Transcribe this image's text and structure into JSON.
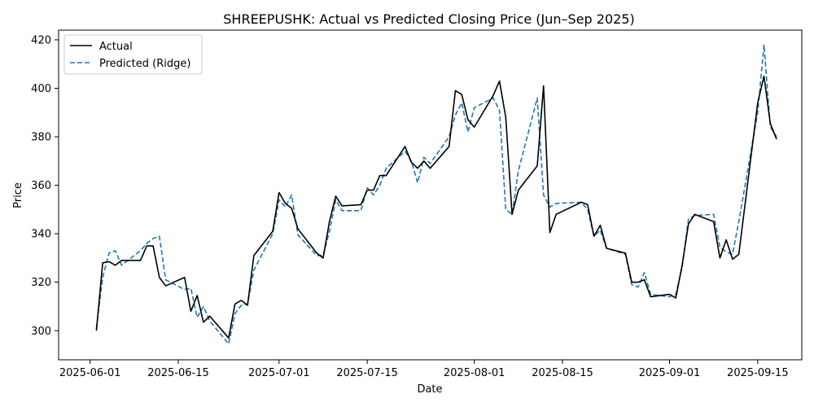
{
  "chart_data": {
    "type": "line",
    "title": "SHREEPUSHK: Actual vs Predicted Closing Price (Jun–Sep 2025)",
    "xlabel": "Date",
    "ylabel": "Price",
    "xlim": [
      "2025-05-27",
      "2025-09-22"
    ],
    "ylim": [
      288,
      424
    ],
    "x_ticks": [
      "2025-06-01",
      "2025-06-15",
      "2025-07-01",
      "2025-07-15",
      "2025-08-01",
      "2025-08-15",
      "2025-09-01",
      "2025-09-15"
    ],
    "y_ticks": [
      300,
      320,
      340,
      360,
      380,
      400,
      420
    ],
    "grid": false,
    "legend": "upper-left",
    "x": [
      "2025-06-02",
      "2025-06-03",
      "2025-06-04",
      "2025-06-05",
      "2025-06-06",
      "2025-06-09",
      "2025-06-10",
      "2025-06-11",
      "2025-06-12",
      "2025-06-13",
      "2025-06-16",
      "2025-06-17",
      "2025-06-18",
      "2025-06-19",
      "2025-06-20",
      "2025-06-23",
      "2025-06-24",
      "2025-06-25",
      "2025-06-26",
      "2025-06-27",
      "2025-06-30",
      "2025-07-01",
      "2025-07-02",
      "2025-07-03",
      "2025-07-04",
      "2025-07-07",
      "2025-07-08",
      "2025-07-09",
      "2025-07-10",
      "2025-07-11",
      "2025-07-14",
      "2025-07-15",
      "2025-07-16",
      "2025-07-17",
      "2025-07-18",
      "2025-07-21",
      "2025-07-22",
      "2025-07-23",
      "2025-07-24",
      "2025-07-25",
      "2025-07-28",
      "2025-07-29",
      "2025-07-30",
      "2025-07-31",
      "2025-08-01",
      "2025-08-04",
      "2025-08-05",
      "2025-08-06",
      "2025-08-07",
      "2025-08-08",
      "2025-08-11",
      "2025-08-12",
      "2025-08-13",
      "2025-08-14",
      "2025-08-18",
      "2025-08-19",
      "2025-08-20",
      "2025-08-21",
      "2025-08-22",
      "2025-08-25",
      "2025-08-26",
      "2025-08-27",
      "2025-08-28",
      "2025-08-29",
      "2025-09-01",
      "2025-09-02",
      "2025-09-03",
      "2025-09-04",
      "2025-09-05",
      "2025-09-08",
      "2025-09-09",
      "2025-09-10",
      "2025-09-11",
      "2025-09-12",
      "2025-09-15",
      "2025-09-16",
      "2025-09-17",
      "2025-09-18"
    ],
    "series": [
      {
        "name": "Actual",
        "color": "#000000",
        "style": "solid",
        "values": [
          300,
          328,
          328.5,
          327,
          329,
          329,
          335,
          335,
          322,
          318.5,
          322,
          308,
          314.5,
          303.5,
          306,
          297,
          311,
          312.5,
          310.5,
          331,
          341,
          357,
          352.5,
          350.5,
          342,
          332,
          330,
          345,
          355.5,
          351.5,
          352,
          358,
          358,
          364,
          364,
          376,
          369.5,
          367,
          370,
          367,
          376,
          399,
          397.5,
          387,
          384,
          397,
          403,
          388,
          348,
          358,
          368,
          401,
          340.5,
          348,
          353,
          352,
          339,
          343.5,
          334,
          332,
          320,
          320,
          321,
          314,
          315,
          313.5,
          327,
          344,
          348,
          345,
          330,
          337.5,
          329.5,
          331.5,
          394,
          405,
          385.5,
          379
        ]
      },
      {
        "name": "Predicted (Ridge)",
        "color": "#1f77b4",
        "style": "dashed",
        "values": [
          301,
          322,
          332,
          333,
          327,
          333,
          336,
          338,
          339,
          321,
          317,
          317.5,
          305.5,
          310,
          304,
          294.5,
          307,
          310.5,
          311,
          325,
          340,
          354,
          351,
          356,
          339.5,
          331,
          331,
          341,
          354,
          349.5,
          349.5,
          359,
          356,
          360,
          367,
          374,
          370,
          361,
          371.5,
          369,
          380,
          389,
          394,
          382,
          392,
          396,
          391,
          350,
          348,
          366,
          396,
          356,
          351,
          352.5,
          353,
          350,
          339,
          341.5,
          334,
          331.5,
          319,
          318,
          324,
          315,
          314,
          315,
          326,
          346,
          347.5,
          348,
          334.5,
          332.5,
          331.5,
          345,
          390,
          418,
          384,
          380
        ]
      }
    ]
  }
}
